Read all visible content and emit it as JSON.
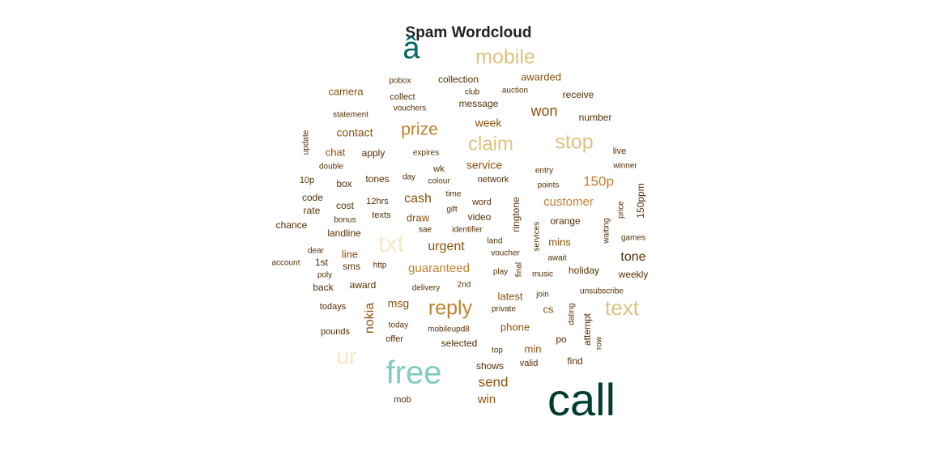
{
  "chart_data": {
    "type": "wordcloud",
    "title": "Spam Wordcloud",
    "words": [
      {
        "text": "call",
        "weight": 56,
        "color": "#003c30"
      },
      {
        "text": "free",
        "weight": 40,
        "color": "#80cdc1"
      },
      {
        "text": "â",
        "weight": 38,
        "color": "#01665e"
      },
      {
        "text": "txt",
        "weight": 30,
        "color": "#f6e8c3"
      },
      {
        "text": "ur",
        "weight": 28,
        "color": "#f6e8c3"
      },
      {
        "text": "text",
        "weight": 26,
        "color": "#dfc27d"
      },
      {
        "text": "reply",
        "weight": 25,
        "color": "#bf812d"
      },
      {
        "text": "mobile",
        "weight": 25,
        "color": "#dfc27d"
      },
      {
        "text": "stop",
        "weight": 25,
        "color": "#dfc27d"
      },
      {
        "text": "claim",
        "weight": 24,
        "color": "#dfc27d"
      },
      {
        "text": "prize",
        "weight": 21,
        "color": "#bf812d"
      },
      {
        "text": "won",
        "weight": 18,
        "color": "#8c510a"
      },
      {
        "text": "150p",
        "weight": 17,
        "color": "#bf812d"
      },
      {
        "text": "send",
        "weight": 17,
        "color": "#8c510a"
      },
      {
        "text": "urgent",
        "weight": 16,
        "color": "#8c510a"
      },
      {
        "text": "nokia",
        "weight": 16,
        "color": "#8c510a"
      },
      {
        "text": "cash",
        "weight": 16,
        "color": "#8c510a"
      },
      {
        "text": "tone",
        "weight": 16,
        "color": "#543005"
      },
      {
        "text": "guaranteed",
        "weight": 15,
        "color": "#bf812d"
      },
      {
        "text": "win",
        "weight": 15,
        "color": "#8c510a"
      },
      {
        "text": "customer",
        "weight": 15,
        "color": "#bf812d"
      },
      {
        "text": "week",
        "weight": 14,
        "color": "#8c510a"
      },
      {
        "text": "contact",
        "weight": 14,
        "color": "#8c510a"
      },
      {
        "text": "service",
        "weight": 14,
        "color": "#8c510a"
      },
      {
        "text": "msg",
        "weight": 14,
        "color": "#8c510a"
      },
      {
        "text": "phone",
        "weight": 13,
        "color": "#8c510a"
      },
      {
        "text": "latest",
        "weight": 13,
        "color": "#8c510a"
      },
      {
        "text": "line",
        "weight": 13,
        "color": "#8c510a"
      },
      {
        "text": "draw",
        "weight": 13,
        "color": "#8c510a"
      },
      {
        "text": "camera",
        "weight": 13,
        "color": "#8c510a"
      },
      {
        "text": "chat",
        "weight": 13,
        "color": "#8c510a"
      },
      {
        "text": "awarded",
        "weight": 13,
        "color": "#8c510a"
      },
      {
        "text": "mins",
        "weight": 13,
        "color": "#8c510a"
      },
      {
        "text": "min",
        "weight": 13,
        "color": "#8c510a"
      },
      {
        "text": "cs",
        "weight": 13,
        "color": "#8c510a"
      },
      {
        "text": "holiday",
        "weight": 12,
        "color": "#543005"
      },
      {
        "text": "150ppm",
        "weight": 12,
        "color": "#543005"
      },
      {
        "text": "collection",
        "weight": 12,
        "color": "#543005"
      },
      {
        "text": "message",
        "weight": 12,
        "color": "#543005"
      },
      {
        "text": "apply",
        "weight": 12,
        "color": "#543005"
      },
      {
        "text": "video",
        "weight": 12,
        "color": "#543005"
      },
      {
        "text": "code",
        "weight": 12,
        "color": "#543005"
      },
      {
        "text": "chance",
        "weight": 12,
        "color": "#543005"
      },
      {
        "text": "landline",
        "weight": 12,
        "color": "#543005"
      },
      {
        "text": "box",
        "weight": 12,
        "color": "#543005"
      },
      {
        "text": "cost",
        "weight": 12,
        "color": "#543005"
      },
      {
        "text": "rate",
        "weight": 12,
        "color": "#543005"
      },
      {
        "text": "sms",
        "weight": 12,
        "color": "#543005"
      },
      {
        "text": "award",
        "weight": 12,
        "color": "#543005"
      },
      {
        "text": "back",
        "weight": 12,
        "color": "#543005"
      },
      {
        "text": "1st",
        "weight": 12,
        "color": "#543005"
      },
      {
        "text": "tones",
        "weight": 12,
        "color": "#543005"
      },
      {
        "text": "ringtone",
        "weight": 12,
        "color": "#543005"
      },
      {
        "text": "orange",
        "weight": 12,
        "color": "#543005"
      },
      {
        "text": "receive",
        "weight": 12,
        "color": "#543005"
      },
      {
        "text": "number",
        "weight": 12,
        "color": "#543005"
      },
      {
        "text": "weekly",
        "weight": 12,
        "color": "#543005"
      },
      {
        "text": "selected",
        "weight": 12,
        "color": "#543005"
      },
      {
        "text": "shows",
        "weight": 12,
        "color": "#543005"
      },
      {
        "text": "find",
        "weight": 12,
        "color": "#543005"
      },
      {
        "text": "po",
        "weight": 12,
        "color": "#543005"
      },
      {
        "text": "attempt",
        "weight": 12,
        "color": "#543005"
      },
      {
        "text": "word",
        "weight": 11,
        "color": "#543005"
      },
      {
        "text": "network",
        "weight": 11,
        "color": "#543005"
      },
      {
        "text": "12hrs",
        "weight": 11,
        "color": "#543005"
      },
      {
        "text": "texts",
        "weight": 11,
        "color": "#543005"
      },
      {
        "text": "offer",
        "weight": 11,
        "color": "#543005"
      },
      {
        "text": "valid",
        "weight": 11,
        "color": "#543005"
      },
      {
        "text": "mob",
        "weight": 11,
        "color": "#543005"
      },
      {
        "text": "collect",
        "weight": 11,
        "color": "#543005"
      },
      {
        "text": "10p",
        "weight": 11,
        "color": "#543005"
      },
      {
        "text": "live",
        "weight": 11,
        "color": "#543005"
      },
      {
        "text": "wk",
        "weight": 11,
        "color": "#543005"
      },
      {
        "text": "todays",
        "weight": 11,
        "color": "#543005"
      },
      {
        "text": "pounds",
        "weight": 11,
        "color": "#543005"
      },
      {
        "text": "account",
        "weight": 10,
        "color": "#543005"
      },
      {
        "text": "pobox",
        "weight": 10,
        "color": "#543005"
      },
      {
        "text": "club",
        "weight": 10,
        "color": "#543005"
      },
      {
        "text": "auction",
        "weight": 10,
        "color": "#543005"
      },
      {
        "text": "statement",
        "weight": 10,
        "color": "#543005"
      },
      {
        "text": "vouchers",
        "weight": 10,
        "color": "#543005"
      },
      {
        "text": "expires",
        "weight": 10,
        "color": "#543005"
      },
      {
        "text": "update",
        "weight": 10,
        "color": "#543005"
      },
      {
        "text": "double",
        "weight": 10,
        "color": "#543005"
      },
      {
        "text": "day",
        "weight": 10,
        "color": "#543005"
      },
      {
        "text": "colour",
        "weight": 10,
        "color": "#543005"
      },
      {
        "text": "entry",
        "weight": 10,
        "color": "#543005"
      },
      {
        "text": "points",
        "weight": 10,
        "color": "#543005"
      },
      {
        "text": "winner",
        "weight": 10,
        "color": "#543005"
      },
      {
        "text": "time",
        "weight": 10,
        "color": "#543005"
      },
      {
        "text": "gift",
        "weight": 10,
        "color": "#543005"
      },
      {
        "text": "bonus",
        "weight": 10,
        "color": "#543005"
      },
      {
        "text": "sae",
        "weight": 10,
        "color": "#543005"
      },
      {
        "text": "identifier",
        "weight": 10,
        "color": "#543005"
      },
      {
        "text": "price",
        "weight": 10,
        "color": "#543005"
      },
      {
        "text": "waiting",
        "weight": 10,
        "color": "#543005"
      },
      {
        "text": "games",
        "weight": 10,
        "color": "#543005"
      },
      {
        "text": "dear",
        "weight": 10,
        "color": "#543005"
      },
      {
        "text": "poly",
        "weight": 10,
        "color": "#543005"
      },
      {
        "text": "http",
        "weight": 10,
        "color": "#543005"
      },
      {
        "text": "land",
        "weight": 10,
        "color": "#543005"
      },
      {
        "text": "voucher",
        "weight": 10,
        "color": "#543005"
      },
      {
        "text": "services",
        "weight": 10,
        "color": "#543005"
      },
      {
        "text": "await",
        "weight": 10,
        "color": "#543005"
      },
      {
        "text": "play",
        "weight": 10,
        "color": "#543005"
      },
      {
        "text": "final",
        "weight": 10,
        "color": "#543005"
      },
      {
        "text": "music",
        "weight": 10,
        "color": "#543005"
      },
      {
        "text": "delivery",
        "weight": 10,
        "color": "#543005"
      },
      {
        "text": "2nd",
        "weight": 10,
        "color": "#543005"
      },
      {
        "text": "join",
        "weight": 10,
        "color": "#543005"
      },
      {
        "text": "unsubscribe",
        "weight": 10,
        "color": "#543005"
      },
      {
        "text": "private",
        "weight": 10,
        "color": "#543005"
      },
      {
        "text": "dating",
        "weight": 10,
        "color": "#543005"
      },
      {
        "text": "today",
        "weight": 10,
        "color": "#543005"
      },
      {
        "text": "mobileupd8",
        "weight": 10,
        "color": "#543005"
      },
      {
        "text": "top",
        "weight": 10,
        "color": "#543005"
      },
      {
        "text": "row",
        "weight": 10,
        "color": "#543005"
      }
    ]
  }
}
